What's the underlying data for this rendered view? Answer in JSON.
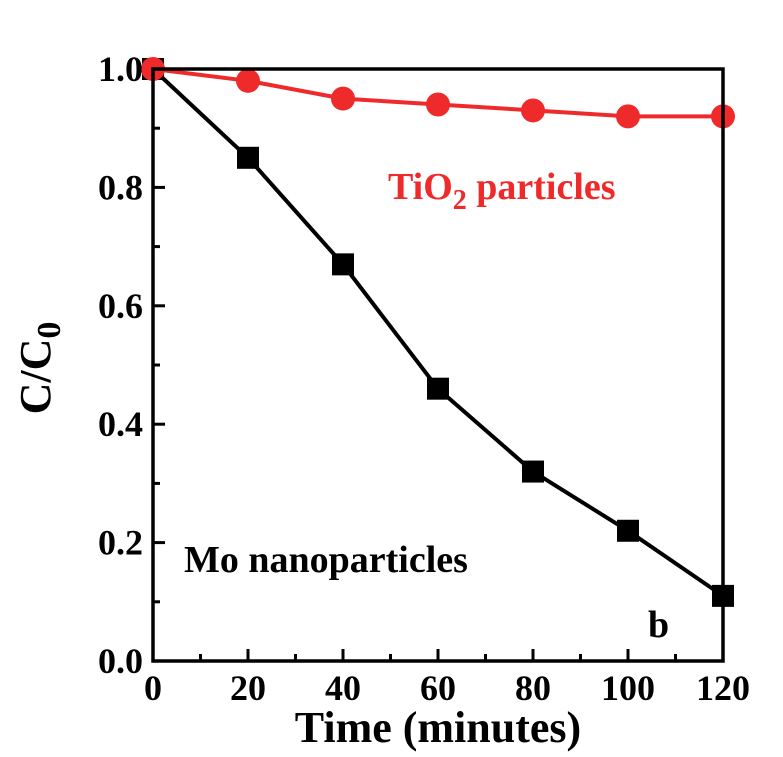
{
  "chart_data": {
    "type": "line",
    "xlabel": "Time (minutes)",
    "ylabel_main": "C/C",
    "ylabel_sub": "0",
    "xlim": [
      0,
      120
    ],
    "ylim": [
      0.0,
      1.0
    ],
    "x_ticks": [
      "0",
      "20",
      "40",
      "60",
      "80",
      "100",
      "120"
    ],
    "y_ticks": [
      "0.0",
      "0.2",
      "0.4",
      "0.6",
      "0.8",
      "1.0"
    ],
    "x": [
      0,
      20,
      40,
      60,
      80,
      100,
      120
    ],
    "series": [
      {
        "name": "Mo nanoparticles",
        "marker": "square",
        "color": "#000000",
        "values": [
          1.0,
          0.85,
          0.67,
          0.46,
          0.32,
          0.22,
          0.11
        ]
      },
      {
        "name": "TiO2 particles",
        "marker": "circle",
        "color": "#ee2a2a",
        "values": [
          1.0,
          0.98,
          0.95,
          0.94,
          0.93,
          0.92,
          0.92
        ]
      }
    ],
    "annotations": {
      "tio2_main": "TiO",
      "tio2_sub": "2",
      "tio2_rest": " particles",
      "mo_label": "Mo nanoparticles",
      "panel_label": "b"
    },
    "grid": false,
    "legend": "none"
  }
}
